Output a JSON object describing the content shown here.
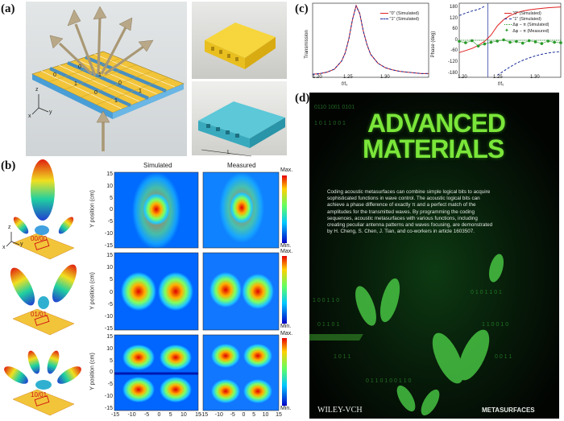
{
  "figure": {
    "panel_labels": {
      "a": "(a)",
      "b": "(b)",
      "c": "(c)",
      "d": "(d)"
    },
    "panel_a": {
      "board_bits": [
        "0",
        "1",
        "0",
        "1",
        "0",
        "1",
        "0",
        "1"
      ],
      "axis_labels": {
        "z": "z",
        "x": "x",
        "y": "y"
      },
      "dim_label": "L"
    },
    "panel_b": {
      "col_titles": {
        "simulated": "Simulated",
        "measured": "Measured"
      },
      "y_axis_label": "Y position (cm)",
      "y_ticks": [
        "15",
        "10",
        "5",
        "0",
        "-5",
        "-10",
        "-15"
      ],
      "x_ticks": [
        "-15",
        "-10",
        "-5",
        "0",
        "5",
        "10",
        "15"
      ],
      "colorbar": {
        "max": "Max.",
        "min": "Min."
      },
      "codes": [
        "00/00",
        "01/01",
        "10/01"
      ],
      "axis_labels": {
        "z": "z",
        "x": "x",
        "y": "y"
      }
    },
    "panel_c": {
      "left": {
        "y_label": "Transmission",
        "x_label": "f/f₀",
        "x_ticks": [
          "1.20",
          "1.25",
          "1.30"
        ],
        "legend": [
          "\"0\" (Simulated)",
          "\"1\" (Simulated)"
        ]
      },
      "right": {
        "y_label": "Phase (deg)",
        "x_label": "f/f₀",
        "y_ticks": [
          "180",
          "120",
          "60",
          "0",
          "-60",
          "-120",
          "-180"
        ],
        "x_ticks": [
          "1.20",
          "1.25",
          "1.30"
        ],
        "legend": [
          "\"0\" (Simulated)",
          "\"1\" (Simulated)",
          "Δφ − π (Simulated)",
          "Δφ − π (Measured)"
        ]
      }
    },
    "panel_d": {
      "title_line1": "ADVANCED",
      "title_line2": "MATERIALS",
      "blurb": "Coding acoustic metasurfaces can combine simple logical bits to acquire sophisticated functions in wave control. The acoustic logical bits can achieve a phase difference of exactly π and a perfect match of the amplitudes for the transmitted waves. By programming the coding sequences, acoustic metasurfaces with various functions, including creating peculiar antenna patterns and waves focusing, are demonstrated by H. Cheng, S. Chen, J. Tian, and co-workers in article 1603507.",
      "publisher": "WILEY-VCH",
      "section": "METASURFACES"
    }
  },
  "chart_data": [
    {
      "type": "line",
      "title": "",
      "xlabel": "f/f₀",
      "ylabel": "Transmission",
      "xlim": [
        1.17,
        1.33
      ],
      "ylim": [
        0,
        1
      ],
      "x": [
        1.17,
        1.18,
        1.19,
        1.2,
        1.21,
        1.215,
        1.22,
        1.225,
        1.23,
        1.235,
        1.24,
        1.245,
        1.25,
        1.26,
        1.27,
        1.28,
        1.29,
        1.3,
        1.31,
        1.32,
        1.33
      ],
      "series": [
        {
          "name": "\"0\" (Simulated)",
          "values": [
            0.04,
            0.05,
            0.07,
            0.11,
            0.22,
            0.33,
            0.52,
            0.78,
            0.97,
            0.86,
            0.62,
            0.44,
            0.31,
            0.19,
            0.13,
            0.1,
            0.08,
            0.07,
            0.06,
            0.05,
            0.05
          ]
        },
        {
          "name": "\"1\" (Simulated)",
          "values": [
            0.04,
            0.05,
            0.07,
            0.11,
            0.22,
            0.33,
            0.52,
            0.78,
            0.96,
            0.86,
            0.62,
            0.44,
            0.31,
            0.19,
            0.13,
            0.1,
            0.08,
            0.07,
            0.06,
            0.05,
            0.05
          ]
        }
      ]
    },
    {
      "type": "line",
      "title": "",
      "xlabel": "f/f₀",
      "ylabel": "Phase (deg)",
      "xlim": [
        1.17,
        1.33
      ],
      "ylim": [
        -180,
        180
      ],
      "x": [
        1.17,
        1.18,
        1.19,
        1.2,
        1.21,
        1.22,
        1.23,
        1.24,
        1.25,
        1.26,
        1.27,
        1.28,
        1.29,
        1.3,
        1.31,
        1.32,
        1.33
      ],
      "series": [
        {
          "name": "\"0\" (Simulated)",
          "values": [
            -60,
            -50,
            -40,
            -25,
            -5,
            25,
            70,
            100,
            120,
            133,
            142,
            148,
            152,
            155,
            158,
            160,
            162
          ]
        },
        {
          "name": "\"1\" (Simulated)",
          "values": [
            120,
            132,
            142,
            150,
            165,
            null,
            -170,
            -150,
            -130,
            -112,
            -98,
            -86,
            -76,
            -68,
            -62,
            -58,
            -55
          ]
        },
        {
          "name": "Δφ − π (Simulated)",
          "values": [
            0,
            0,
            0,
            0,
            0,
            0,
            0,
            0,
            0,
            0,
            0,
            0,
            0,
            0,
            0,
            0,
            0
          ]
        },
        {
          "name": "Δφ − π (Measured)",
          "values": [
            -5,
            -12,
            -2,
            -28,
            -18,
            -10,
            -4,
            2,
            -10,
            -6,
            -14,
            -2,
            -8,
            -16,
            -4,
            -10,
            -12
          ]
        }
      ]
    }
  ]
}
